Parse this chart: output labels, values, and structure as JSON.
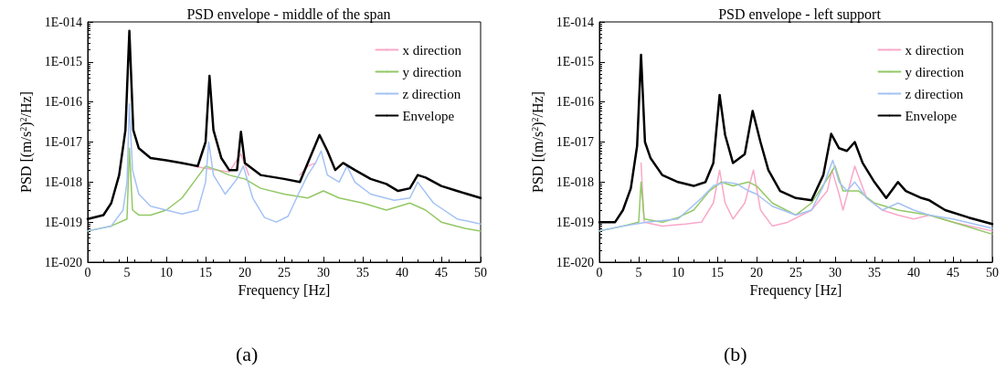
{
  "chart_data": [
    {
      "type": "line",
      "title": "PSD envelope - middle of the span",
      "xlabel": "Frequency [Hz]",
      "ylabel": "PSD [(m/s$^{2}$)$^{2}$/Hz]",
      "annotations": [
        "(a)"
      ],
      "log": "y",
      "grid": false,
      "legend": "top right",
      "marker": "none",
      "line_style": "solid",
      "xlim": [
        0,
        50
      ],
      "xticks": [
        0,
        5,
        10,
        15,
        20,
        25,
        30,
        35,
        40,
        45,
        50
      ],
      "ylim": [
        1e-20,
        1e-14
      ],
      "yticks": [
        {
          "value": 1e-20,
          "label": "1E-020"
        },
        {
          "value": 1e-19,
          "label": "1E-019"
        },
        {
          "value": 1e-18,
          "label": "1E-018"
        },
        {
          "value": 1e-17,
          "label": "1E-017"
        },
        {
          "value": 1e-16,
          "label": "1E-016"
        },
        {
          "value": 1e-15,
          "label": "1E-015"
        },
        {
          "value": 1e-14,
          "label": "1E-014"
        }
      ],
      "series": [
        {
          "name": "x direction",
          "color": "#f9a8c8",
          "x": [
            13.5,
            15,
            16.5,
            18,
            19.5,
            20.5,
            21,
            27,
            28,
            29
          ],
          "values": [
            2.5e-18,
            2.2e-18,
            2e-18,
            1.8e-18,
            5e-18,
            1.5e-18,
            null,
            1.5e-18,
            2.5e-18,
            3e-18
          ]
        },
        {
          "name": "y direction",
          "color": "#92c864",
          "x": [
            0,
            3,
            5,
            5.3,
            5.7,
            6.5,
            8,
            10,
            12,
            13.5,
            15,
            16.5,
            18,
            20,
            22,
            25,
            28,
            30,
            32,
            35,
            38,
            41,
            43,
            45,
            48,
            50
          ],
          "values": [
            6e-20,
            8e-20,
            1.2e-19,
            7e-18,
            2e-19,
            1.5e-19,
            1.5e-19,
            2e-19,
            4e-19,
            1e-18,
            2.5e-18,
            2e-18,
            1.5e-18,
            1.2e-18,
            7e-19,
            5e-19,
            4e-19,
            6e-19,
            4e-19,
            3e-19,
            2e-19,
            3e-19,
            2e-19,
            1e-19,
            7e-20,
            6e-20
          ]
        },
        {
          "name": "z direction",
          "color": "#a4c2f4",
          "x": [
            0,
            3,
            4.5,
            5,
            5.3,
            5.7,
            6.5,
            8,
            10,
            12,
            14,
            15,
            15.4,
            16,
            17.5,
            19,
            19.8,
            21,
            22.5,
            24,
            25.5,
            27,
            28,
            29,
            29.7,
            30.5,
            32,
            33,
            34,
            36,
            39,
            41,
            42,
            44,
            47,
            50
          ],
          "values": [
            6e-20,
            8e-20,
            2e-19,
            1e-18,
            9e-17,
            2e-18,
            5e-19,
            2.5e-19,
            2e-19,
            1.6e-19,
            2e-19,
            1e-18,
            1e-17,
            1.5e-18,
            5e-19,
            1.2e-18,
            2.5e-18,
            4e-19,
            1.3e-19,
            1e-19,
            1.4e-19,
            6e-19,
            1.5e-18,
            3e-18,
            6e-18,
            1.5e-18,
            1e-18,
            2.5e-18,
            1e-18,
            5e-19,
            3.5e-19,
            4e-19,
            1e-18,
            3e-19,
            1.2e-19,
            9e-20
          ]
        },
        {
          "name": "Envelope",
          "color": "#000000",
          "x": [
            0,
            2,
            3,
            4,
            4.8,
            5.3,
            5.8,
            6.5,
            8,
            10,
            12,
            14,
            15,
            15.5,
            16,
            17,
            18,
            19,
            19.5,
            20,
            22,
            25,
            27,
            28,
            29.5,
            30.5,
            31.5,
            32.5,
            34,
            36,
            38,
            39.5,
            41,
            42,
            43,
            45,
            47,
            50
          ],
          "values": [
            1.2e-19,
            1.5e-19,
            3e-19,
            1.5e-18,
            2e-17,
            6e-15,
            2e-17,
            7e-18,
            4e-18,
            3.5e-18,
            3e-18,
            2.5e-18,
            1e-17,
            4.5e-16,
            2e-17,
            4e-18,
            2e-18,
            2e-18,
            1.8e-17,
            3e-18,
            1.5e-18,
            1.2e-18,
            1e-18,
            3e-18,
            1.5e-17,
            6e-18,
            2e-18,
            3e-18,
            2e-18,
            1.2e-18,
            9e-19,
            6e-19,
            7e-19,
            1.5e-18,
            1.3e-18,
            8e-19,
            6e-19,
            4e-19
          ]
        }
      ]
    },
    {
      "type": "line",
      "title": "PSD envelope - left support",
      "xlabel": "Frequency [Hz]",
      "ylabel": "PSD [(m/s$^{2}$)$^{2}$/Hz]",
      "annotations": [
        "(b)"
      ],
      "log": "y",
      "grid": false,
      "legend": "top right",
      "marker": "none",
      "line_style": "solid",
      "xlim": [
        0,
        50
      ],
      "xticks": [
        0,
        5,
        10,
        15,
        20,
        25,
        30,
        35,
        40,
        45,
        50
      ],
      "ylim": [
        1e-20,
        1e-14
      ],
      "yticks": [
        {
          "value": 1e-20,
          "label": "1E-020"
        },
        {
          "value": 1e-19,
          "label": "1E-019"
        },
        {
          "value": 1e-18,
          "label": "1E-018"
        },
        {
          "value": 1e-17,
          "label": "1E-017"
        },
        {
          "value": 1e-16,
          "label": "1E-016"
        },
        {
          "value": 1e-15,
          "label": "1E-015"
        },
        {
          "value": 1e-14,
          "label": "1E-014"
        }
      ],
      "series": [
        {
          "name": "x direction",
          "color": "#f9a8c8",
          "x": [
            5.3,
            5.7,
            8,
            11,
            13,
            14.5,
            15.3,
            16,
            17,
            18.5,
            19.6,
            20.5,
            22,
            24,
            27,
            29,
            29.6,
            30.5,
            31,
            32.5,
            34,
            36,
            38,
            40,
            42,
            45,
            50
          ],
          "values": [
            3e-18,
            1e-19,
            8e-20,
            9e-20,
            1e-19,
            3e-19,
            2e-18,
            3e-19,
            1.2e-19,
            3e-19,
            2e-18,
            2e-19,
            8e-20,
            1e-19,
            2e-19,
            6e-19,
            2e-18,
            5e-19,
            2e-19,
            2.5e-18,
            4e-19,
            2e-19,
            1.5e-19,
            1.2e-19,
            1.5e-19,
            1e-19,
            6e-20
          ]
        },
        {
          "name": "y direction",
          "color": "#92c864",
          "x": [
            0,
            3,
            5,
            5.3,
            5.7,
            8,
            10,
            12,
            14,
            15.5,
            17,
            19,
            20,
            22,
            25,
            27,
            29,
            30,
            31,
            33,
            35,
            38,
            42,
            45,
            50
          ],
          "values": [
            6e-20,
            8e-20,
            1e-19,
            1e-18,
            1.2e-19,
            1e-19,
            1.3e-19,
            2e-19,
            6e-19,
            1e-18,
            8e-19,
            1e-18,
            8e-19,
            3e-19,
            1.5e-19,
            3e-19,
            1.2e-18,
            2.5e-18,
            6e-19,
            6e-19,
            3e-19,
            2e-19,
            1.5e-19,
            1e-19,
            5e-20
          ]
        },
        {
          "name": "z direction",
          "color": "#a4c2f4",
          "x": [
            0,
            3,
            6,
            10,
            13,
            14.5,
            16,
            17.5,
            19,
            20,
            22,
            25,
            27,
            28.5,
            29.7,
            30.5,
            31.5,
            32.5,
            34,
            36,
            38,
            40,
            42,
            45,
            50
          ],
          "values": [
            6e-20,
            8e-20,
            1e-19,
            1.2e-19,
            4e-19,
            8e-19,
            1e-18,
            9e-19,
            6e-19,
            5e-19,
            2.5e-19,
            1.5e-19,
            2e-19,
            8e-19,
            3.5e-18,
            1e-18,
            6e-19,
            1e-18,
            4e-19,
            2e-19,
            3e-19,
            2e-19,
            1.5e-19,
            1.2e-19,
            7e-20
          ]
        },
        {
          "name": "Envelope",
          "color": "#000000",
          "x": [
            0,
            2,
            3,
            4,
            4.8,
            5.3,
            5.8,
            6.5,
            8,
            10,
            12,
            13.5,
            14.5,
            15.3,
            16,
            17,
            18.5,
            19.5,
            20.5,
            21.5,
            23,
            25,
            27,
            28.5,
            29.5,
            30.5,
            31.5,
            32.5,
            33.5,
            35,
            36.5,
            38,
            39,
            41,
            42,
            44,
            47,
            50
          ],
          "values": [
            1e-19,
            1e-19,
            2e-19,
            7e-19,
            8e-18,
            1.5e-15,
            1e-17,
            4e-18,
            1.5e-18,
            1e-18,
            8e-19,
            1e-18,
            3e-18,
            1.5e-16,
            1.5e-17,
            3e-18,
            5e-18,
            6e-17,
            1e-17,
            2e-18,
            6e-19,
            4e-19,
            3.5e-19,
            1.5e-18,
            1.6e-17,
            7e-18,
            6e-18,
            1e-17,
            3e-18,
            1e-18,
            4e-19,
            1e-18,
            6e-19,
            4e-19,
            3.5e-19,
            2e-19,
            1.3e-19,
            9e-20
          ]
        }
      ]
    }
  ]
}
